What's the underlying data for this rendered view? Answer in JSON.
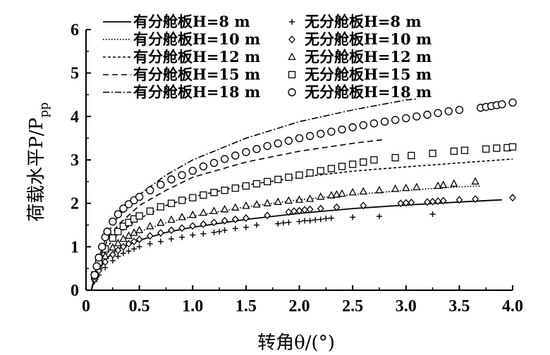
{
  "chart_data": {
    "type": "line",
    "xlabel": "转角θ/(°)",
    "ylabel": "荷载水平P/P",
    "ylabel_sub": "pp",
    "xlim": [
      0,
      4.0
    ],
    "ylim": [
      0,
      6
    ],
    "x_ticks": [
      "0",
      "0.5",
      "1.0",
      "1.5",
      "2.0",
      "2.5",
      "3.0",
      "3.5",
      "4.0"
    ],
    "y_ticks": [
      "0",
      "1",
      "2",
      "3",
      "4",
      "5",
      "6"
    ],
    "legend_position": "top-left",
    "series": [
      {
        "name": "有分舱板H=8 m",
        "style": "solid",
        "x": [
          0.05,
          0.1,
          0.2,
          0.3,
          0.5,
          0.75,
          1.0,
          1.5,
          2.0,
          2.5,
          3.0,
          3.5,
          3.9
        ],
        "y": [
          0,
          0.4,
          0.75,
          0.95,
          1.15,
          1.33,
          1.45,
          1.63,
          1.77,
          1.88,
          1.96,
          2.03,
          2.08
        ]
      },
      {
        "name": "有分舱板H=10 m",
        "style": "dotted",
        "x": [
          0.05,
          0.1,
          0.2,
          0.3,
          0.5,
          0.75,
          1.0,
          1.5,
          2.0,
          2.5,
          3.0,
          3.5,
          3.7
        ],
        "y": [
          0,
          0.45,
          0.85,
          1.1,
          1.35,
          1.55,
          1.7,
          1.92,
          2.08,
          2.2,
          2.3,
          2.38,
          2.4
        ]
      },
      {
        "name": "有分舱板H=12 m",
        "style": "dashed-short",
        "x": [
          0.05,
          0.1,
          0.2,
          0.3,
          0.5,
          0.75,
          1.0,
          1.5,
          2.0,
          2.5,
          3.0,
          3.5,
          4.0
        ],
        "y": [
          0,
          0.5,
          1.0,
          1.3,
          1.65,
          1.95,
          2.15,
          2.42,
          2.6,
          2.74,
          2.84,
          2.93,
          3.02
        ]
      },
      {
        "name": "有分舱板H=15 m",
        "style": "dashed-long",
        "x": [
          0.05,
          0.1,
          0.2,
          0.3,
          0.5,
          0.75,
          1.0,
          1.5,
          2.0,
          2.5,
          2.8
        ],
        "y": [
          0,
          0.55,
          1.15,
          1.5,
          1.95,
          2.3,
          2.6,
          2.95,
          3.2,
          3.38,
          3.47
        ]
      },
      {
        "name": "有分舱板H=18 m",
        "style": "dash-dot",
        "x": [
          0.05,
          0.1,
          0.2,
          0.3,
          0.5,
          0.75,
          1.0,
          1.5,
          2.0,
          2.5,
          3.0,
          3.1
        ],
        "y": [
          0,
          0.6,
          1.3,
          1.7,
          2.2,
          2.65,
          3.0,
          3.5,
          3.88,
          4.15,
          4.38,
          4.4
        ]
      },
      {
        "name": "无分舱板H=8 m",
        "marker": "plus",
        "x": [
          0.08,
          0.12,
          0.18,
          0.25,
          0.3,
          0.35,
          0.4,
          0.45,
          0.5,
          0.6,
          0.7,
          0.8,
          0.9,
          1.0,
          1.1,
          1.2,
          1.25,
          1.3,
          1.4,
          1.5,
          1.6,
          1.8,
          1.85,
          1.9,
          2.0,
          2.05,
          2.1,
          2.15,
          2.2,
          2.25,
          2.3,
          2.5,
          2.75,
          3.25
        ],
        "y": [
          0.2,
          0.35,
          0.52,
          0.68,
          0.78,
          0.85,
          0.9,
          0.95,
          1.0,
          1.07,
          1.12,
          1.18,
          1.22,
          1.27,
          1.3,
          1.33,
          1.35,
          1.38,
          1.42,
          1.45,
          1.5,
          1.53,
          1.55,
          1.56,
          1.58,
          1.6,
          1.6,
          1.62,
          1.63,
          1.65,
          1.66,
          1.68,
          1.7,
          1.75
        ]
      },
      {
        "name": "无分舱板H=10 m",
        "marker": "diamond",
        "x": [
          0.08,
          0.12,
          0.18,
          0.25,
          0.3,
          0.35,
          0.4,
          0.45,
          0.5,
          0.6,
          0.7,
          0.8,
          0.9,
          1.0,
          1.1,
          1.2,
          1.3,
          1.4,
          1.5,
          1.7,
          1.9,
          1.95,
          2.0,
          2.05,
          2.1,
          2.2,
          2.35,
          2.6,
          2.95,
          3.0,
          3.05,
          3.2,
          3.25,
          3.3,
          3.35,
          3.5,
          3.65,
          4.0
        ],
        "y": [
          0.25,
          0.45,
          0.65,
          0.82,
          0.92,
          1.0,
          1.07,
          1.12,
          1.17,
          1.25,
          1.32,
          1.38,
          1.43,
          1.48,
          1.52,
          1.56,
          1.6,
          1.63,
          1.66,
          1.72,
          1.8,
          1.82,
          1.83,
          1.85,
          1.86,
          1.88,
          1.91,
          1.95,
          2.0,
          2.01,
          2.02,
          2.03,
          2.04,
          2.05,
          2.06,
          2.08,
          2.1,
          2.13
        ]
      },
      {
        "name": "无分舱板H=12 m",
        "marker": "triangle",
        "x": [
          0.08,
          0.12,
          0.18,
          0.25,
          0.3,
          0.35,
          0.4,
          0.45,
          0.5,
          0.6,
          0.7,
          0.8,
          0.9,
          1.0,
          1.1,
          1.2,
          1.3,
          1.4,
          1.5,
          1.6,
          1.7,
          1.8,
          1.9,
          2.0,
          2.1,
          2.2,
          2.3,
          2.35,
          2.4,
          2.5,
          2.6,
          2.75,
          2.9,
          3.0,
          3.1,
          3.3,
          3.35,
          3.45,
          3.65
        ],
        "y": [
          0.3,
          0.55,
          0.78,
          0.98,
          1.08,
          1.18,
          1.25,
          1.32,
          1.38,
          1.47,
          1.55,
          1.62,
          1.68,
          1.73,
          1.78,
          1.82,
          1.86,
          1.9,
          1.94,
          1.97,
          2.0,
          2.03,
          2.06,
          2.08,
          2.1,
          2.15,
          2.18,
          2.2,
          2.22,
          2.25,
          2.27,
          2.3,
          2.33,
          2.35,
          2.37,
          2.4,
          2.42,
          2.45,
          2.5
        ]
      },
      {
        "name": "无分舱板H=15 m",
        "marker": "square",
        "x": [
          0.08,
          0.12,
          0.18,
          0.25,
          0.3,
          0.35,
          0.4,
          0.45,
          0.5,
          0.6,
          0.7,
          0.8,
          0.9,
          1.0,
          1.1,
          1.2,
          1.3,
          1.4,
          1.5,
          1.6,
          1.7,
          1.8,
          1.9,
          2.0,
          2.1,
          2.2,
          2.3,
          2.4,
          2.5,
          2.6,
          2.7,
          2.9,
          3.05,
          3.25,
          3.45,
          3.55,
          3.75,
          3.85,
          3.95,
          4.0
        ],
        "y": [
          0.35,
          0.65,
          0.95,
          1.2,
          1.35,
          1.47,
          1.56,
          1.64,
          1.71,
          1.82,
          1.92,
          2.0,
          2.07,
          2.13,
          2.19,
          2.25,
          2.3,
          2.35,
          2.4,
          2.45,
          2.5,
          2.55,
          2.6,
          2.65,
          2.7,
          2.75,
          2.8,
          2.85,
          2.9,
          2.95,
          3.0,
          3.05,
          3.1,
          3.15,
          3.2,
          3.22,
          3.25,
          3.27,
          3.28,
          3.3
        ]
      },
      {
        "name": "无分舱板H=18 m",
        "marker": "circle",
        "x": [
          0.08,
          0.1,
          0.12,
          0.15,
          0.18,
          0.2,
          0.25,
          0.3,
          0.35,
          0.4,
          0.45,
          0.5,
          0.6,
          0.7,
          0.8,
          0.9,
          1.0,
          1.1,
          1.2,
          1.3,
          1.4,
          1.5,
          1.6,
          1.7,
          1.8,
          1.9,
          2.0,
          2.1,
          2.2,
          2.3,
          2.4,
          2.5,
          2.6,
          2.7,
          2.8,
          2.9,
          3.0,
          3.1,
          3.2,
          3.3,
          3.4,
          3.5,
          3.7,
          3.75,
          3.8,
          3.85,
          3.9,
          4.0
        ],
        "y": [
          0.35,
          0.55,
          0.75,
          1.0,
          1.22,
          1.35,
          1.58,
          1.75,
          1.88,
          1.98,
          2.07,
          2.15,
          2.3,
          2.43,
          2.55,
          2.65,
          2.75,
          2.85,
          2.93,
          3.02,
          3.1,
          3.18,
          3.25,
          3.32,
          3.38,
          3.44,
          3.5,
          3.55,
          3.6,
          3.65,
          3.7,
          3.75,
          3.8,
          3.84,
          3.88,
          3.92,
          3.96,
          4.0,
          4.04,
          4.08,
          4.12,
          4.15,
          4.2,
          4.22,
          4.24,
          4.26,
          4.28,
          4.32
        ]
      }
    ]
  }
}
